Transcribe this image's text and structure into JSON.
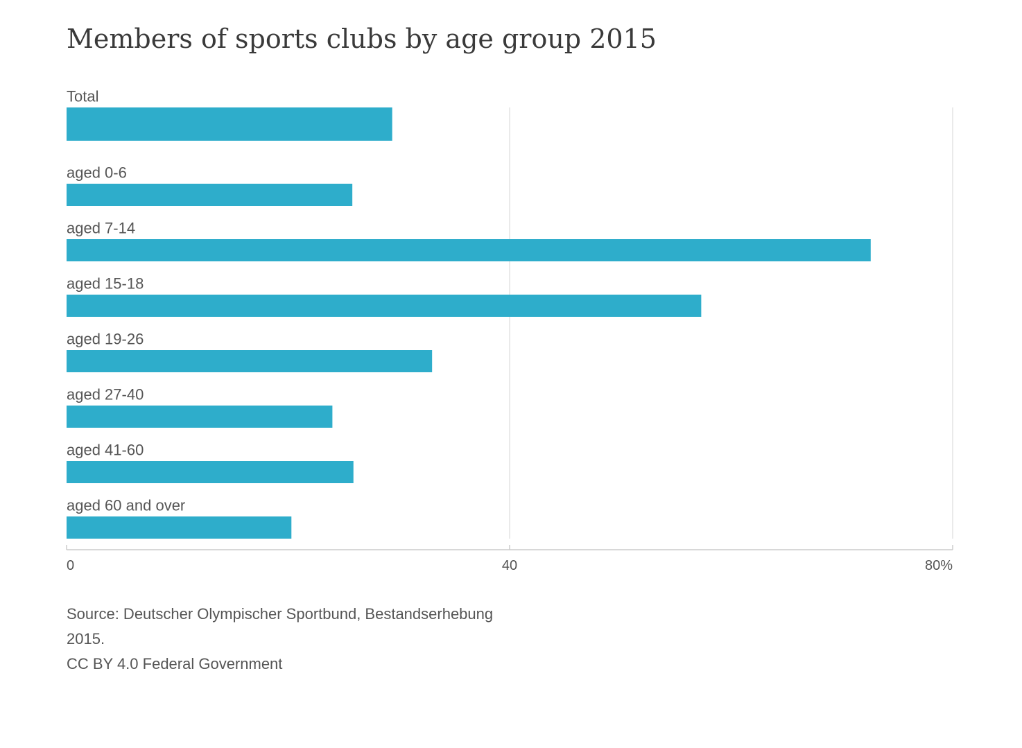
{
  "title": "Members of sports clubs by age group 2015",
  "chart_data": {
    "type": "bar",
    "orientation": "horizontal",
    "title": "Members of sports clubs by age group 2015",
    "categories": [
      "Total",
      "aged 0-6",
      "aged 7-14",
      "aged 15-18",
      "aged 19-26",
      "aged 27-40",
      "aged 41-60",
      "aged 60 and over"
    ],
    "values": [
      29.4,
      25.8,
      72.6,
      57.3,
      33.0,
      24.0,
      25.9,
      20.3
    ],
    "xlabel": "",
    "ylabel": "",
    "xlim": [
      0,
      80
    ],
    "ticks": [
      {
        "value": 0,
        "label": "0"
      },
      {
        "value": 40,
        "label": "40"
      },
      {
        "value": 80,
        "label": "80%"
      }
    ],
    "grid": true,
    "bar_color": "#2aabca",
    "grid_color": "#e3e3e3",
    "axis_color": "#cccccc"
  },
  "source": {
    "line1": "Source: Deutscher Olympischer Sportbund, Bestandserhebung",
    "line2": "2015.",
    "line3": "CC BY 4.0 Federal Government"
  }
}
